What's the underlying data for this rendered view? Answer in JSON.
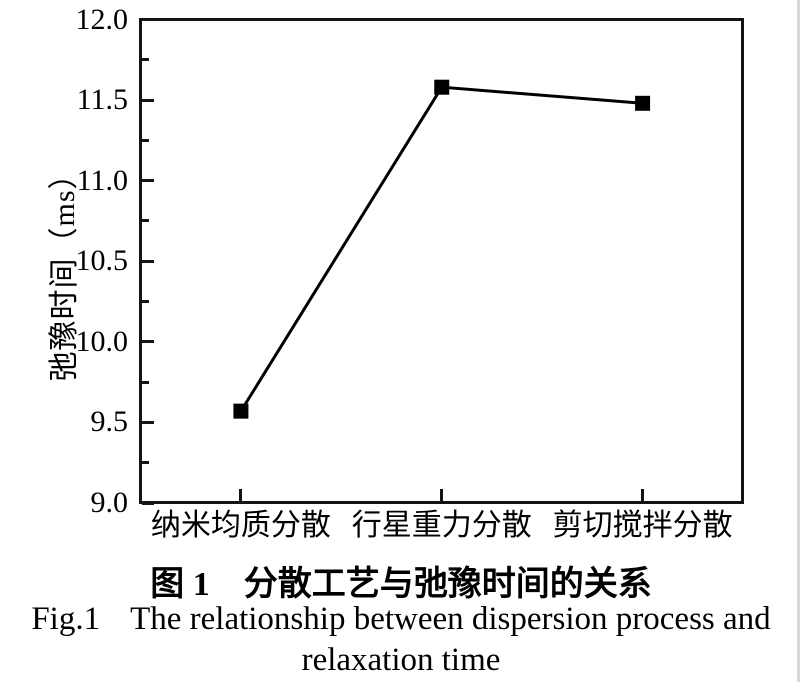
{
  "chart_data": {
    "type": "line",
    "categories": [
      "纳米均质分散",
      "行星重力分散",
      "剪切搅拌分散"
    ],
    "values": [
      9.57,
      11.58,
      11.48
    ],
    "title": "",
    "xlabel": "",
    "ylabel": "弛豫时间（ms）",
    "ylim": [
      9.0,
      12.0
    ],
    "ytick_step": 0.5,
    "ytick_minor_step": 0.25,
    "ytick_labels": [
      "12.0",
      "11.5",
      "11.0",
      "10.5",
      "10.0",
      "9.5",
      "9.0"
    ],
    "marker": "square",
    "marker_size_px": 15,
    "line_color": "#000000",
    "marker_color": "#000000",
    "axis_color": "#141414",
    "grid": false,
    "legend": false
  },
  "figure": {
    "caption_zh_fig": "图 1",
    "caption_zh_title": "分散工艺与弛豫时间的关系",
    "caption_en_fig": "Fig.1",
    "caption_en_line1": "The relationship between dispersion process and",
    "caption_en_line2": "relaxation time"
  },
  "page": {
    "right_border_color": "#d6d6d6"
  }
}
